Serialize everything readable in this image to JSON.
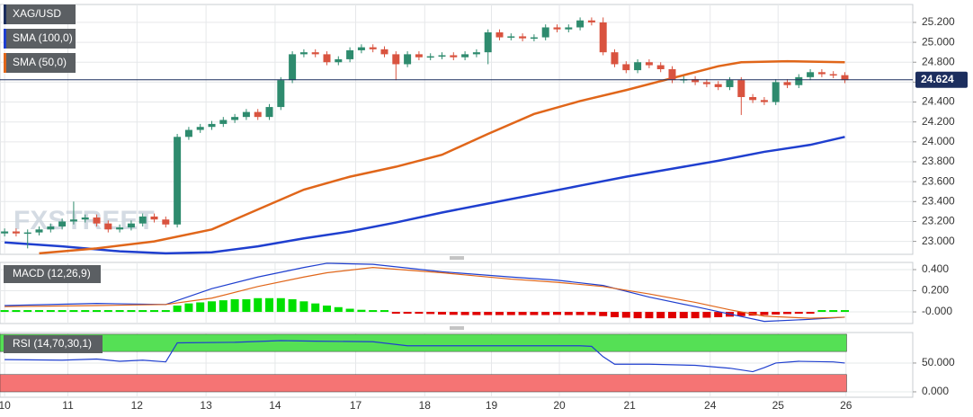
{
  "chart_data": [
    {
      "type": "candlestick",
      "title": "XAG/USD",
      "watermark": "FXSTREET",
      "up_color": "#2e8b6e",
      "down_color": "#d9533f",
      "price_line": 24.624,
      "price_line_color": "#1c2e5e",
      "grid": true,
      "xlim": [
        -0.4,
        78.9
      ],
      "xticks": [
        {
          "value": 0,
          "label": "10"
        },
        {
          "value": 5.5,
          "label": "11"
        },
        {
          "value": 11.5,
          "label": "12"
        },
        {
          "value": 17.5,
          "label": "13"
        },
        {
          "value": 23.5,
          "label": "14"
        },
        {
          "value": 30.5,
          "label": "17"
        },
        {
          "value": 36.5,
          "label": "18"
        },
        {
          "value": 42.3,
          "label": "19"
        },
        {
          "value": 48.2,
          "label": "20"
        },
        {
          "value": 54.3,
          "label": "21"
        },
        {
          "value": 61.3,
          "label": "24"
        },
        {
          "value": 67.2,
          "label": "25"
        },
        {
          "value": 73.1,
          "label": "26"
        }
      ],
      "ylim": [
        22.87,
        25.38
      ],
      "yticks": [
        {
          "value": 23.0,
          "label": "23.000"
        },
        {
          "value": 23.2,
          "label": "23.200"
        },
        {
          "value": 23.4,
          "label": "23.400"
        },
        {
          "value": 23.6,
          "label": "23.600"
        },
        {
          "value": 23.8,
          "label": "23.800"
        },
        {
          "value": 24.0,
          "label": "24.000"
        },
        {
          "value": 24.2,
          "label": "24.200"
        },
        {
          "value": 24.4,
          "label": "24.400"
        },
        {
          "value": 24.6,
          "label": "24.600"
        },
        {
          "value": 24.8,
          "label": "24.800"
        },
        {
          "value": 25.0,
          "label": "25.000"
        },
        {
          "value": 25.2,
          "label": "25.200"
        }
      ],
      "open": [
        23.08,
        23.1,
        23.08,
        23.09,
        23.12,
        23.15,
        23.2,
        23.22,
        23.24,
        23.18,
        23.12,
        23.14,
        23.18,
        23.25,
        23.22,
        23.17,
        24.05,
        24.12,
        24.15,
        24.18,
        24.22,
        24.25,
        24.3,
        24.25,
        24.35,
        24.62,
        24.88,
        24.9,
        24.88,
        24.8,
        24.83,
        24.92,
        24.95,
        24.93,
        24.88,
        24.78,
        24.88,
        24.85,
        24.86,
        24.87,
        24.85,
        24.88,
        24.9,
        25.1,
        25.05,
        25.06,
        25.04,
        25.05,
        25.15,
        25.13,
        25.15,
        25.22,
        25.2,
        24.9,
        24.78,
        24.72,
        24.8,
        24.77,
        24.73,
        24.62,
        24.63,
        24.6,
        24.58,
        24.55,
        24.62,
        24.45,
        24.42,
        24.4,
        24.6,
        24.57,
        24.65,
        24.7,
        24.68,
        24.67
      ],
      "high": [
        23.13,
        23.13,
        23.12,
        23.15,
        23.18,
        23.23,
        23.4,
        23.27,
        23.27,
        23.21,
        23.17,
        23.21,
        23.28,
        23.28,
        23.25,
        24.08,
        24.15,
        24.18,
        24.21,
        24.25,
        24.28,
        24.33,
        24.33,
        24.38,
        24.65,
        24.91,
        24.93,
        24.93,
        24.91,
        24.86,
        24.95,
        24.98,
        24.98,
        24.96,
        24.91,
        24.91,
        24.91,
        24.89,
        24.9,
        24.9,
        24.91,
        24.93,
        25.13,
        25.13,
        25.09,
        25.09,
        25.08,
        25.18,
        25.18,
        25.18,
        25.25,
        25.25,
        25.25,
        24.93,
        24.81,
        24.83,
        24.83,
        24.8,
        24.76,
        24.66,
        24.66,
        24.63,
        24.61,
        24.65,
        24.65,
        24.48,
        24.45,
        24.63,
        24.63,
        24.68,
        24.73,
        24.73,
        24.71,
        24.7
      ],
      "low": [
        23.05,
        23.05,
        22.93,
        23.06,
        23.09,
        23.12,
        23.17,
        23.19,
        23.15,
        23.09,
        23.09,
        23.11,
        23.15,
        23.19,
        23.14,
        23.14,
        24.02,
        24.09,
        24.12,
        24.15,
        24.19,
        24.22,
        24.22,
        24.22,
        24.32,
        24.59,
        24.85,
        24.85,
        24.77,
        24.77,
        24.8,
        24.89,
        24.9,
        24.85,
        24.62,
        24.75,
        24.82,
        24.82,
        24.83,
        24.82,
        24.82,
        24.85,
        24.78,
        25.02,
        25.02,
        25.01,
        25.01,
        25.02,
        25.1,
        25.1,
        25.12,
        25.17,
        24.87,
        24.75,
        24.69,
        24.69,
        24.74,
        24.7,
        24.59,
        24.59,
        24.57,
        24.55,
        24.52,
        24.52,
        24.27,
        24.39,
        24.37,
        24.37,
        24.54,
        24.54,
        24.62,
        24.65,
        24.64,
        24.59
      ],
      "close": [
        23.1,
        23.08,
        23.09,
        23.12,
        23.15,
        23.2,
        23.22,
        23.24,
        23.18,
        23.12,
        23.14,
        23.18,
        23.25,
        23.22,
        23.17,
        24.05,
        24.12,
        24.15,
        24.18,
        24.22,
        24.25,
        24.3,
        24.25,
        24.35,
        24.62,
        24.88,
        24.9,
        24.88,
        24.8,
        24.83,
        24.92,
        24.95,
        24.93,
        24.88,
        24.78,
        24.88,
        24.85,
        24.86,
        24.87,
        24.85,
        24.88,
        24.9,
        25.1,
        25.05,
        25.06,
        25.04,
        25.05,
        25.15,
        25.13,
        25.15,
        25.22,
        25.2,
        24.9,
        24.78,
        24.72,
        24.8,
        24.77,
        24.73,
        24.62,
        24.63,
        24.6,
        24.58,
        24.55,
        24.62,
        24.45,
        24.42,
        24.4,
        24.6,
        24.57,
        24.65,
        24.7,
        24.68,
        24.67,
        24.62
      ],
      "series": [
        {
          "name": "SMA (100,0)",
          "color": "#1f3fcf",
          "x": [
            0,
            5,
            10,
            14,
            18,
            22,
            26,
            30,
            34,
            38,
            42,
            46,
            50,
            54,
            58,
            62,
            66,
            70,
            73
          ],
          "values": [
            22.99,
            22.95,
            22.9,
            22.88,
            22.89,
            22.95,
            23.03,
            23.1,
            23.19,
            23.29,
            23.38,
            23.47,
            23.56,
            23.65,
            23.73,
            23.81,
            23.9,
            23.97,
            24.05
          ]
        },
        {
          "name": "SMA (50,0)",
          "color": "#e0661a",
          "x": [
            3,
            8,
            13,
            18,
            22,
            26,
            30,
            34,
            38,
            42,
            46,
            50,
            54,
            58,
            62,
            64,
            68,
            73
          ],
          "values": [
            22.88,
            22.93,
            23.0,
            23.12,
            23.32,
            23.52,
            23.65,
            23.75,
            23.87,
            24.08,
            24.28,
            24.41,
            24.52,
            24.64,
            24.76,
            24.8,
            24.81,
            24.8
          ]
        }
      ]
    },
    {
      "type": "macd",
      "title": "MACD (12,26,9)",
      "up_color": "#00e000",
      "down_color": "#e00000",
      "ylim": [
        -0.11,
        0.468
      ],
      "yticks": [
        {
          "value": 0.4,
          "label": "0.400"
        },
        {
          "value": 0.2,
          "label": "0.200"
        },
        {
          "value": 0,
          "label": "-0.000"
        }
      ],
      "histogram": [
        0.005,
        0.005,
        0.004,
        0.003,
        0.003,
        0.003,
        0.004,
        0.004,
        0.003,
        0.002,
        0.002,
        0.002,
        0.002,
        0.002,
        0.002,
        0.06,
        0.08,
        0.09,
        0.1,
        0.11,
        0.12,
        0.12,
        0.13,
        0.13,
        0.13,
        0.12,
        0.1,
        0.08,
        0.06,
        0.045,
        0.03,
        0.02,
        0.01,
        0.003,
        -0.003,
        -0.008,
        -0.012,
        -0.02,
        -0.025,
        -0.028,
        -0.03,
        -0.03,
        -0.03,
        -0.03,
        -0.03,
        -0.03,
        -0.03,
        -0.03,
        -0.028,
        -0.03,
        -0.03,
        -0.03,
        -0.04,
        -0.05,
        -0.055,
        -0.06,
        -0.06,
        -0.06,
        -0.06,
        -0.06,
        -0.06,
        -0.055,
        -0.05,
        -0.045,
        -0.04,
        -0.035,
        -0.03,
        -0.025,
        -0.02,
        -0.015,
        -0.008,
        0.003,
        0.006,
        0.008
      ],
      "series": [
        {
          "color": "#1f3fcf",
          "x": [
            0,
            8,
            14,
            18,
            22,
            26,
            28,
            32,
            38,
            44,
            48,
            52,
            56,
            60,
            63,
            66,
            70,
            73
          ],
          "values": [
            0.06,
            0.08,
            0.07,
            0.22,
            0.33,
            0.42,
            0.46,
            0.45,
            0.38,
            0.33,
            0.3,
            0.25,
            0.14,
            0.05,
            -0.02,
            -0.09,
            -0.07,
            -0.05
          ]
        },
        {
          "color": "#e0661a",
          "x": [
            0,
            8,
            14,
            18,
            22,
            26,
            28,
            32,
            38,
            44,
            48,
            52,
            56,
            60,
            63,
            66,
            70,
            73
          ],
          "values": [
            0.05,
            0.06,
            0.07,
            0.13,
            0.24,
            0.33,
            0.37,
            0.42,
            0.37,
            0.31,
            0.28,
            0.24,
            0.17,
            0.09,
            0.02,
            -0.04,
            -0.06,
            -0.05
          ]
        }
      ]
    },
    {
      "type": "rsi",
      "title": "RSI (14,70,30,1)",
      "overbought": 70,
      "oversold": 30,
      "overbought_color": "#55e055",
      "oversold_color": "#f57474",
      "ylim": [
        -9.4,
        103
      ],
      "yticks": [
        {
          "value": 50,
          "label": "50.000"
        },
        {
          "value": 0,
          "label": "0.000"
        }
      ],
      "series": [
        {
          "color": "#1f3fcf",
          "x": [
            0,
            5,
            8,
            10,
            12,
            14,
            15,
            20,
            24,
            27,
            32,
            35,
            40,
            45,
            50,
            51,
            52,
            53,
            56,
            60,
            63,
            65,
            66,
            67,
            69,
            72,
            73
          ],
          "values": [
            56,
            55,
            57,
            53,
            55,
            52,
            85,
            86,
            89,
            88,
            87,
            80,
            80,
            80,
            80,
            79,
            61,
            48,
            48,
            46,
            41,
            35,
            42,
            50,
            53,
            52,
            50
          ]
        }
      ]
    }
  ]
}
